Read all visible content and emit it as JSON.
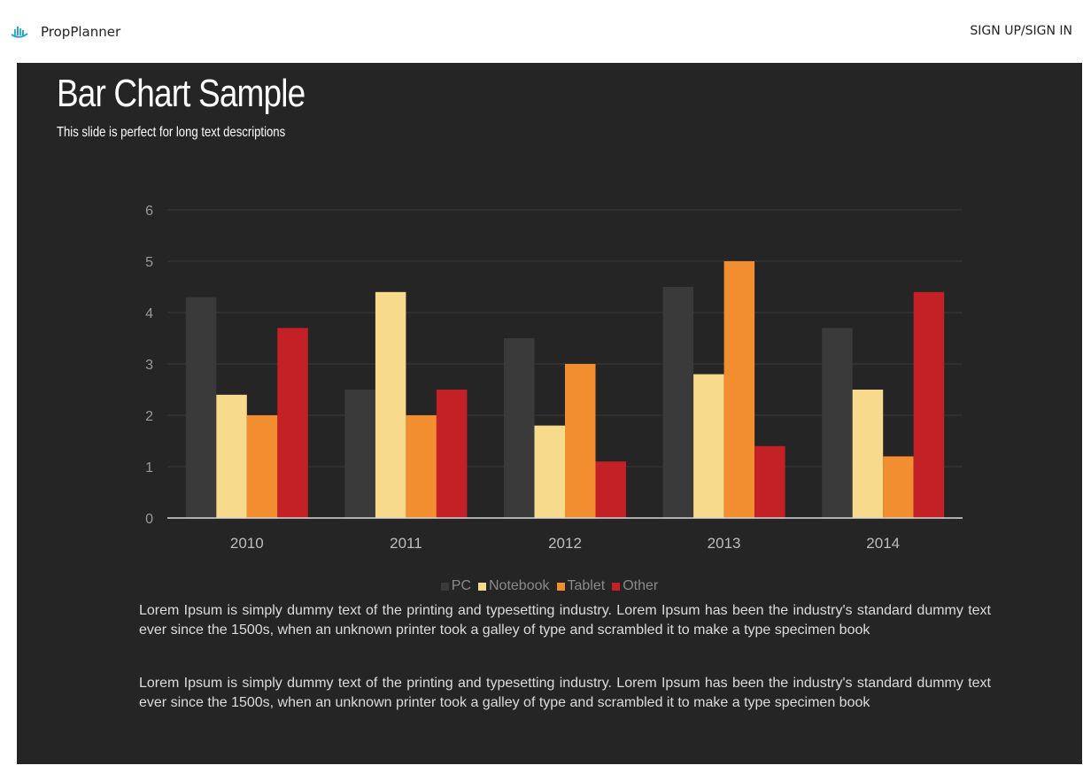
{
  "header": {
    "brand_name": "PropPlanner",
    "brand_icon": "city-skyline-icon",
    "signin_label": "SIGN UP/SIGN IN"
  },
  "slide": {
    "title": "Bar Chart Sample",
    "subtitle": "This slide is perfect for long text descriptions",
    "paragraphs": [
      "Lorem Ipsum is simply dummy text of the printing and typesetting industry. Lorem Ipsum has been the industry's standard dummy text ever since the 1500s, when an unknown printer took a galley of type and scrambled it to make a type specimen book",
      "Lorem Ipsum is simply dummy text of the printing and typesetting industry. Lorem Ipsum has been the industry's standard dummy text ever since the 1500s, when an unknown printer took a galley of type and scrambled it to make a type specimen book"
    ]
  },
  "chart_data": {
    "type": "bar",
    "categories": [
      "2010",
      "2011",
      "2012",
      "2013",
      "2014"
    ],
    "series": [
      {
        "name": "PC",
        "color": "#3a3a3a",
        "values": [
          4.3,
          2.5,
          3.5,
          4.5,
          3.7
        ]
      },
      {
        "name": "Notebook",
        "color": "#f7da8c",
        "values": [
          2.4,
          4.4,
          1.8,
          2.8,
          2.5
        ]
      },
      {
        "name": "Tablet",
        "color": "#f28e30",
        "values": [
          2.0,
          2.0,
          3.0,
          5.0,
          1.2
        ]
      },
      {
        "name": "Other",
        "color": "#c42127",
        "values": [
          3.7,
          2.5,
          1.1,
          1.4,
          4.4
        ]
      }
    ],
    "ylim": [
      0,
      6
    ],
    "yticks": [
      0,
      1,
      2,
      3,
      4,
      5,
      6
    ],
    "grid": true,
    "legend_position": "bottom-center",
    "xlabel": "",
    "ylabel": ""
  }
}
